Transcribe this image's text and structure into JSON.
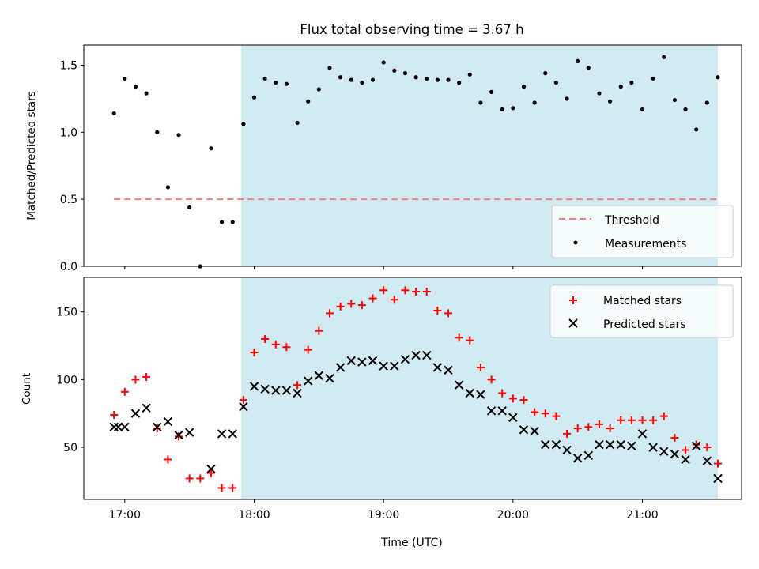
{
  "figure": {
    "title": "Flux total observing time = 3.67 h",
    "xlabel": "Time (UTC)"
  },
  "colors": {
    "shade": "#add8e6",
    "threshold": "#f08080",
    "measurements": "#000000",
    "matched": "#ff0000",
    "predicted": "#000000"
  },
  "chart_data": [
    {
      "type": "scatter",
      "ylabel": "Matched/Predicted stars",
      "xlim": [
        "16:41",
        "21:46"
      ],
      "ylim": [
        0,
        1.65
      ],
      "x_ticks": [
        "17:00",
        "18:00",
        "19:00",
        "20:00",
        "21:00"
      ],
      "y_ticks": [
        "0.0",
        "0.5",
        "1.0",
        "1.5"
      ],
      "grid": false,
      "legend": "lower right",
      "shaded_span": [
        "17:54",
        "21:35"
      ],
      "threshold": {
        "name": "Threshold",
        "style": "dashed",
        "y": 0.5,
        "x_range": [
          "16:55",
          "21:35"
        ]
      },
      "series": [
        {
          "name": "Measurements",
          "marker": "dot",
          "x": [
            "16:55",
            "17:00",
            "17:05",
            "17:10",
            "17:15",
            "17:20",
            "17:25",
            "17:30",
            "17:35",
            "17:40",
            "17:45",
            "17:50",
            "17:55",
            "18:00",
            "18:05",
            "18:10",
            "18:15",
            "18:20",
            "18:25",
            "18:30",
            "18:35",
            "18:40",
            "18:45",
            "18:50",
            "18:55",
            "19:00",
            "19:05",
            "19:10",
            "19:15",
            "19:20",
            "19:25",
            "19:30",
            "19:35",
            "19:40",
            "19:45",
            "19:50",
            "19:55",
            "20:00",
            "20:05",
            "20:10",
            "20:15",
            "20:20",
            "20:25",
            "20:30",
            "20:35",
            "20:40",
            "20:45",
            "20:50",
            "20:55",
            "21:00",
            "21:05",
            "21:10",
            "21:15",
            "21:20",
            "21:25",
            "21:30",
            "21:35"
          ],
          "y": [
            1.14,
            1.4,
            1.34,
            1.29,
            1.0,
            0.59,
            0.98,
            0.44,
            0.0,
            0.88,
            0.33,
            0.33,
            1.06,
            1.26,
            1.4,
            1.37,
            1.36,
            1.07,
            1.23,
            1.32,
            1.48,
            1.41,
            1.39,
            1.37,
            1.39,
            1.52,
            1.46,
            1.44,
            1.41,
            1.4,
            1.39,
            1.39,
            1.37,
            1.43,
            1.22,
            1.3,
            1.17,
            1.18,
            1.34,
            1.22,
            1.44,
            1.37,
            1.25,
            1.53,
            1.48,
            1.29,
            1.23,
            1.34,
            1.37,
            1.17,
            1.4,
            1.56,
            1.24,
            1.17,
            1.02,
            1.22,
            1.41
          ]
        }
      ]
    },
    {
      "type": "scatter",
      "ylabel": "Count",
      "xlabel": "Time (UTC)",
      "xlim": [
        "16:41",
        "21:46"
      ],
      "ylim": [
        11.5,
        175.5
      ],
      "x_ticks": [
        "17:00",
        "18:00",
        "19:00",
        "20:00",
        "21:00"
      ],
      "y_ticks": [
        "50",
        "100",
        "150"
      ],
      "grid": false,
      "legend": "upper right",
      "shaded_span": [
        "17:54",
        "21:35"
      ],
      "x": [
        "16:55",
        "16:57",
        "17:00",
        "17:05",
        "17:10",
        "17:15",
        "17:20",
        "17:25",
        "17:30",
        "17:35",
        "17:40",
        "17:45",
        "17:50",
        "17:55",
        "18:00",
        "18:05",
        "18:10",
        "18:15",
        "18:20",
        "18:25",
        "18:30",
        "18:35",
        "18:40",
        "18:45",
        "18:50",
        "18:55",
        "19:00",
        "19:05",
        "19:10",
        "19:15",
        "19:20",
        "19:25",
        "19:30",
        "19:35",
        "19:40",
        "19:45",
        "19:50",
        "19:55",
        "20:00",
        "20:05",
        "20:10",
        "20:15",
        "20:20",
        "20:25",
        "20:30",
        "20:35",
        "20:40",
        "20:45",
        "20:50",
        "20:55",
        "21:00",
        "21:05",
        "21:10",
        "21:15",
        "21:20",
        "21:25",
        "21:30",
        "21:35"
      ],
      "series": [
        {
          "name": "Matched stars",
          "marker": "plus",
          "y": [
            74,
            null,
            91,
            100,
            102,
            64,
            41,
            58,
            27,
            27,
            31,
            20,
            20,
            85,
            120,
            130,
            126,
            124,
            96,
            122,
            136,
            149,
            154,
            156,
            155,
            160,
            166,
            159,
            166,
            165,
            165,
            151,
            149,
            131,
            129,
            109,
            100,
            90,
            86,
            85,
            76,
            75,
            73,
            60,
            64,
            65,
            67,
            64,
            70,
            70,
            70,
            70,
            73,
            57,
            48,
            52,
            50,
            38
          ]
        },
        {
          "name": "Predicted stars",
          "marker": "x",
          "y": [
            65,
            65,
            65,
            75,
            79,
            65,
            69,
            59,
            61,
            null,
            34,
            60,
            60,
            80,
            95,
            93,
            92,
            92,
            90,
            99,
            103,
            101,
            109,
            114,
            113,
            114,
            110,
            110,
            115,
            118,
            118,
            109,
            107,
            96,
            90,
            89,
            77,
            77,
            72,
            63,
            62,
            52,
            52,
            48,
            42,
            44,
            52,
            52,
            52,
            51,
            60,
            50,
            47,
            45,
            41,
            51,
            40,
            27
          ]
        }
      ]
    }
  ]
}
